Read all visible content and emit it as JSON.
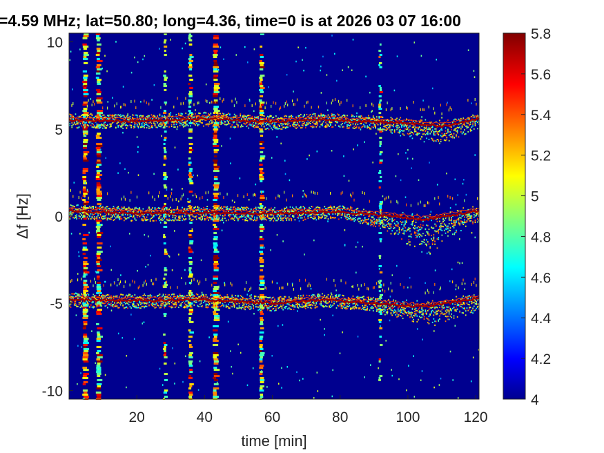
{
  "chart_data": {
    "type": "heatmap",
    "title": "=4.59 MHz;  lat=50.80; long=4.36, time=0 is at 2026 03 07 16:00",
    "xlabel": "time [min]",
    "ylabel": "Δf [Hz]",
    "xlim": [
      0,
      121
    ],
    "ylim": [
      -10.5,
      10.5
    ],
    "xticks": [
      20,
      40,
      60,
      80,
      100,
      120
    ],
    "xtick_labels": [
      "20",
      "40",
      "60",
      "80",
      "100",
      "120"
    ],
    "yticks": [
      10,
      5,
      0,
      -5,
      -10
    ],
    "ytick_labels": [
      "10",
      "5",
      "0",
      "-5",
      "-10"
    ],
    "colorbar": {
      "colormap": "jet",
      "range": [
        4,
        5.8
      ],
      "ticks": [
        5.8,
        5.6,
        5.4,
        5.2,
        5,
        4.8,
        4.6,
        4.4,
        4.2,
        4
      ],
      "tick_labels": [
        "5.8",
        "5.6",
        "5.4",
        "5.2",
        "5",
        "4.8",
        "4.6",
        "4.4",
        "4.2",
        "4"
      ]
    },
    "background_color": "#00008f",
    "horizontal_traces": [
      {
        "center_df": 5.5,
        "points": [
          [
            0,
            5.5
          ],
          [
            20,
            5.45
          ],
          [
            40,
            5.6
          ],
          [
            60,
            5.4
          ],
          [
            75,
            5.55
          ],
          [
            90,
            5.4
          ],
          [
            100,
            5.35
          ],
          [
            110,
            5.15
          ],
          [
            121,
            5.6
          ]
        ],
        "lower_spread": [
          [
            90,
            0
          ],
          [
            100,
            0.5
          ],
          [
            108,
            0.7
          ],
          [
            121,
            0.2
          ]
        ]
      },
      {
        "center_df": 0.2,
        "points": [
          [
            0,
            0.3
          ],
          [
            20,
            0.15
          ],
          [
            40,
            0.2
          ],
          [
            60,
            0.15
          ],
          [
            80,
            0.25
          ],
          [
            95,
            0.0
          ],
          [
            105,
            -0.2
          ],
          [
            121,
            0.3
          ]
        ],
        "lower_spread": [
          [
            80,
            0
          ],
          [
            92,
            0.4
          ],
          [
            100,
            1.2
          ],
          [
            106,
            1.8
          ],
          [
            115,
            0.6
          ],
          [
            121,
            0.2
          ]
        ]
      },
      {
        "center_df": -4.8,
        "points": [
          [
            0,
            -4.8
          ],
          [
            20,
            -4.85
          ],
          [
            40,
            -4.8
          ],
          [
            60,
            -5.0
          ],
          [
            75,
            -4.8
          ],
          [
            90,
            -5.0
          ],
          [
            105,
            -5.2
          ],
          [
            121,
            -4.7
          ]
        ],
        "lower_spread": [
          [
            88,
            0
          ],
          [
            100,
            0.5
          ],
          [
            108,
            0.8
          ],
          [
            121,
            0.3
          ]
        ]
      }
    ],
    "vertical_bands": [
      {
        "time": 5.0,
        "intensity": 0.95
      },
      {
        "time": 9.0,
        "intensity": 1.0
      },
      {
        "time": 28.5,
        "intensity": 0.45
      },
      {
        "time": 36.0,
        "intensity": 0.6
      },
      {
        "time": 43.5,
        "intensity": 1.0
      },
      {
        "time": 57.0,
        "intensity": 0.75
      },
      {
        "time": 92.0,
        "intensity": 0.35
      }
    ]
  }
}
